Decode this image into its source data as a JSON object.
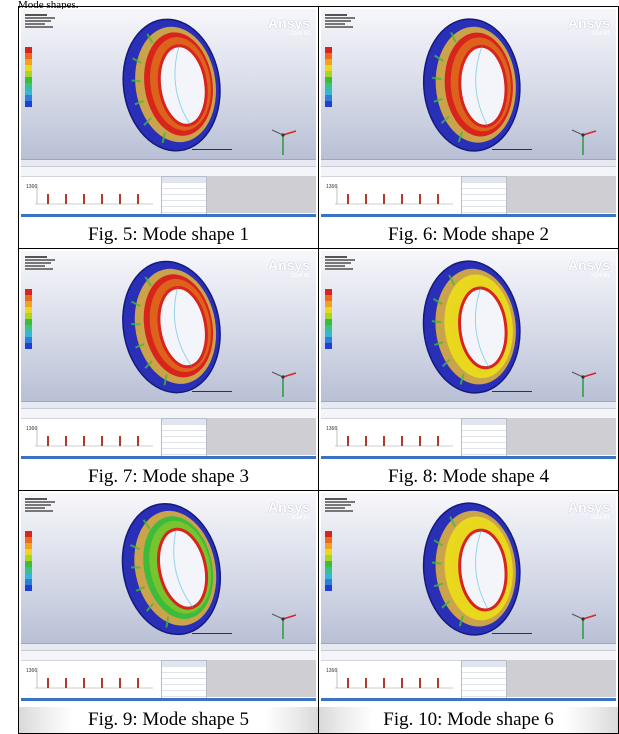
{
  "page_top_text": "Mode shapes.",
  "figures": [
    {
      "caption": "Fig. 5: Mode shape 1",
      "brand": "Ansys",
      "version": "2024 R1",
      "graph_y_label": "1366"
    },
    {
      "caption": "Fig. 6: Mode shape 2",
      "brand": "Ansys",
      "version": "2024 R1",
      "graph_y_label": "1366"
    },
    {
      "caption": "Fig. 7: Mode shape 3",
      "brand": "Ansys",
      "version": "2024 R1",
      "graph_y_label": "1366"
    },
    {
      "caption": "Fig. 8: Mode shape 4",
      "brand": "Ansys",
      "version": "2024 R1",
      "graph_y_label": "1366"
    },
    {
      "caption": "Fig. 9: Mode shape 5",
      "brand": "Ansys",
      "version": "2024 R1",
      "graph_y_label": "1366"
    },
    {
      "caption": "Fig. 10: Mode shape 6",
      "brand": "Ansys",
      "version": "2024 R1",
      "graph_y_label": "1366"
    }
  ],
  "colors": {
    "rim_blue": "#2a2fb8",
    "contour_red": "#d8241c",
    "contour_yellow": "#e8d81e",
    "contour_green": "#3dbb3a",
    "contour_cyan": "#36b6d6",
    "contour_blue": "#1f3fd0"
  },
  "legend_colors": [
    "#d8241c",
    "#ee6a1a",
    "#f2a21c",
    "#e8d81e",
    "#a9d623",
    "#3dbb3a",
    "#36c28a",
    "#36b6d6",
    "#2f7fd8",
    "#1f3fd0"
  ]
}
